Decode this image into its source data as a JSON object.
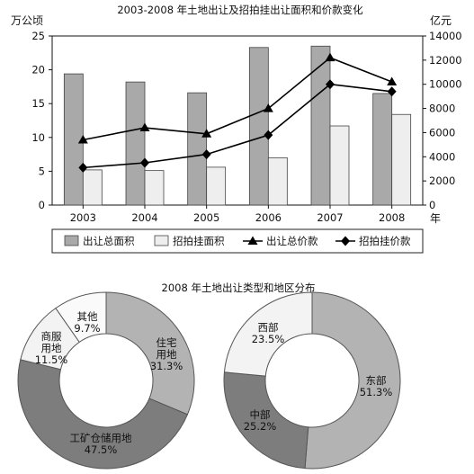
{
  "top": {
    "title": "2003-2008 年土地出让及招拍挂出让面积和价款变化",
    "left_unit": "万公顷",
    "right_unit": "亿元",
    "year_suffix": "年"
  },
  "bottom_title": "2008 年土地出让类型和地区分布",
  "chart_data": [
    {
      "type": "bar",
      "title": "2003-2008 年土地出让及招拍挂出让面积和价款变化",
      "categories": [
        "2003",
        "2004",
        "2005",
        "2006",
        "2007",
        "2008"
      ],
      "y_left": {
        "label": "万公顷",
        "range": [
          0,
          25
        ],
        "ticks": [
          0,
          5,
          10,
          15,
          20,
          25
        ]
      },
      "y_right": {
        "label": "亿元",
        "range": [
          0,
          14000
        ],
        "ticks": [
          0,
          2000,
          4000,
          6000,
          8000,
          10000,
          12000,
          14000
        ]
      },
      "grid": false,
      "legend_position": "bottom",
      "series": [
        {
          "name": "出让总面积",
          "type": "bar",
          "axis": "left",
          "color": "#a9a9a9",
          "values": [
            19.4,
            18.2,
            16.6,
            23.3,
            23.5,
            16.5
          ]
        },
        {
          "name": "招拍挂面积",
          "type": "bar",
          "axis": "left",
          "color": "#eeeeee",
          "values": [
            5.2,
            5.1,
            5.6,
            7.0,
            11.7,
            13.4
          ]
        },
        {
          "name": "出让总价款",
          "type": "line",
          "axis": "right",
          "marker": "triangle",
          "values": [
            5400,
            6400,
            5900,
            8000,
            12200,
            10200
          ]
        },
        {
          "name": "招拍挂价款",
          "type": "line",
          "axis": "right",
          "marker": "diamond",
          "values": [
            3100,
            3500,
            4200,
            5800,
            10000,
            9400
          ]
        }
      ]
    },
    {
      "type": "pie",
      "variant": "donut",
      "slices": [
        {
          "label": "住宅用地",
          "lines": [
            "住宅",
            "用地"
          ],
          "value": 31.3,
          "pct": "31.3%",
          "color": "#b3b3b3"
        },
        {
          "label": "工矿仓储用地",
          "lines": [
            "工矿仓储用地"
          ],
          "value": 47.5,
          "pct": "47.5%",
          "color": "#7d7d7d"
        },
        {
          "label": "商服用地",
          "lines": [
            "商服",
            "用地"
          ],
          "value": 11.5,
          "pct": "11.5%",
          "color": "#f3f3f3"
        },
        {
          "label": "其他",
          "lines": [
            "其他"
          ],
          "value": 9.7,
          "pct": "9.7%",
          "color": "#fafafa"
        }
      ]
    },
    {
      "type": "pie",
      "variant": "donut",
      "slices": [
        {
          "label": "东部",
          "lines": [
            "东部"
          ],
          "value": 51.3,
          "pct": "51.3%",
          "color": "#b3b3b3"
        },
        {
          "label": "中部",
          "lines": [
            "中部"
          ],
          "value": 25.2,
          "pct": "25.2%",
          "color": "#7d7d7d"
        },
        {
          "label": "西部",
          "lines": [
            "西部"
          ],
          "value": 23.5,
          "pct": "23.5%",
          "color": "#f3f3f3"
        }
      ]
    }
  ]
}
